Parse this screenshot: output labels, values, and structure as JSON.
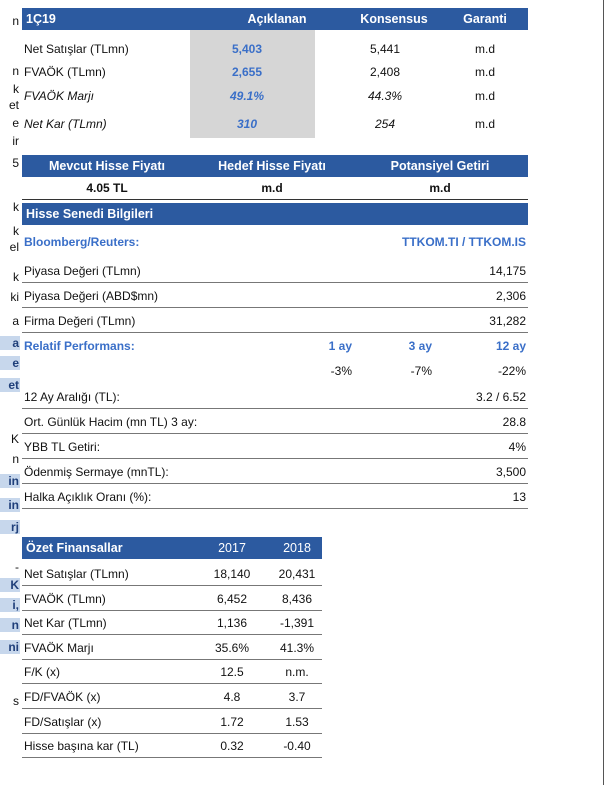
{
  "left_fragments": [
    {
      "text": "n",
      "hl": false
    },
    {
      "text": "n",
      "hl": false
    },
    {
      "text": "k",
      "hl": false
    },
    {
      "text": "et",
      "hl": false
    },
    {
      "text": "e",
      "hl": false
    },
    {
      "text": "ir",
      "hl": false
    },
    {
      "text": "5",
      "hl": false
    },
    {
      "text": "k",
      "hl": false
    },
    {
      "text": "k",
      "hl": false
    },
    {
      "text": "el",
      "hl": false
    },
    {
      "text": "k",
      "hl": false
    },
    {
      "text": "ki",
      "hl": false
    },
    {
      "text": "a",
      "hl": false
    },
    {
      "text": "a",
      "hl": true
    },
    {
      "text": "e",
      "hl": true
    },
    {
      "text": "et",
      "hl": true
    },
    {
      "text": "K",
      "hl": false
    },
    {
      "text": "n",
      "hl": false
    },
    {
      "text": "in",
      "hl": true
    },
    {
      "text": "in",
      "hl": true
    },
    {
      "text": "rj",
      "hl": true
    },
    {
      "text": "-",
      "hl": false
    },
    {
      "text": "K",
      "hl": true
    },
    {
      "text": "i,",
      "hl": true
    },
    {
      "text": "n",
      "hl": true
    },
    {
      "text": "ni",
      "hl": true
    },
    {
      "text": "s",
      "hl": false
    }
  ],
  "estimates": {
    "header": {
      "period": "1Ç19",
      "actual": "Açıklanan",
      "consensus": "Konsensus",
      "garanti": "Garanti"
    },
    "rows": [
      {
        "label": "Net Satışlar (TLmn)",
        "actual": "5,403",
        "consensus": "5,441",
        "garanti": "m.d",
        "italic": false
      },
      {
        "label": "FVAÖK (TLmn)",
        "actual": "2,655",
        "consensus": "2,408",
        "garanti": "m.d",
        "italic": false
      },
      {
        "label": "FVAÖK Marjı",
        "actual": "49.1%",
        "consensus": "44.3%",
        "garanti": "m.d",
        "italic": true
      },
      {
        "label": "Net Kar (TLmn)",
        "actual": "310",
        "consensus": "254",
        "garanti": "m.d",
        "italic": true
      }
    ]
  },
  "price": {
    "headers": [
      "Mevcut Hisse Fiyatı",
      "Hedef Hisse Fiyatı",
      "Potansiyel Getiri"
    ],
    "values": [
      "4.05 TL",
      "m.d",
      "m.d"
    ]
  },
  "stock_info": {
    "title": "Hisse Senedi Bilgileri",
    "bloomberg_label": "Bloomberg/Reuters:",
    "bloomberg_value": "TTKOM.TI / TTKOM.IS",
    "rows": [
      {
        "label": "Piyasa Değeri (TLmn)",
        "value": "14,175"
      },
      {
        "label": "Piyasa Değeri (ABD$mn)",
        "value": "2,306"
      },
      {
        "label": "Firma Değeri (TLmn)",
        "value": "31,282"
      }
    ],
    "relative": {
      "label": "Relatif Performans:",
      "h1": "1 ay",
      "h2": "3 ay",
      "h3": "12 ay",
      "v1": "-3%",
      "v2": "-7%",
      "v3": "-22%"
    },
    "rows2": [
      {
        "label": "12 Ay Aralığı (TL):",
        "value": "3.2 / 6.52"
      },
      {
        "label": "Ort. Günlük Hacim (mn TL) 3 ay:",
        "value": "28.8"
      },
      {
        "label": "YBB TL Getiri:",
        "value": "4%"
      },
      {
        "label": "Ödenmiş Sermaye (mnTL):",
        "value": "3,500"
      },
      {
        "label": "Halka Açıklık Oranı (%):",
        "value": "13"
      }
    ]
  },
  "financials": {
    "title": "Özet Finansallar",
    "years": [
      "2017",
      "2018"
    ],
    "rows": [
      {
        "label": "Net Satışlar (TLmn)",
        "v2017": "18,140",
        "v2018": "20,431"
      },
      {
        "label": "FVAÖK (TLmn)",
        "v2017": "6,452",
        "v2018": "8,436"
      },
      {
        "label": "Net Kar (TLmn)",
        "v2017": "1,136",
        "v2018": "-1,391"
      },
      {
        "label": "FVAÖK Marjı",
        "v2017": "35.6%",
        "v2018": "41.3%"
      },
      {
        "label": "F/K (x)",
        "v2017": "12.5",
        "v2018": "n.m."
      },
      {
        "label": "FD/FVAÖK (x)",
        "v2017": "4.8",
        "v2018": "3.7"
      },
      {
        "label": "FD/Satışlar (x)",
        "v2017": "1.72",
        "v2018": "1.53"
      },
      {
        "label": "Hisse başına kar (TL)",
        "v2017": "0.32",
        "v2018": "-0.40"
      }
    ]
  },
  "colors": {
    "header_blue": "#2c5aa0",
    "link_blue": "#3a6fc8",
    "shade": "#d6d6d6",
    "highlight": "#c7d7ec"
  }
}
